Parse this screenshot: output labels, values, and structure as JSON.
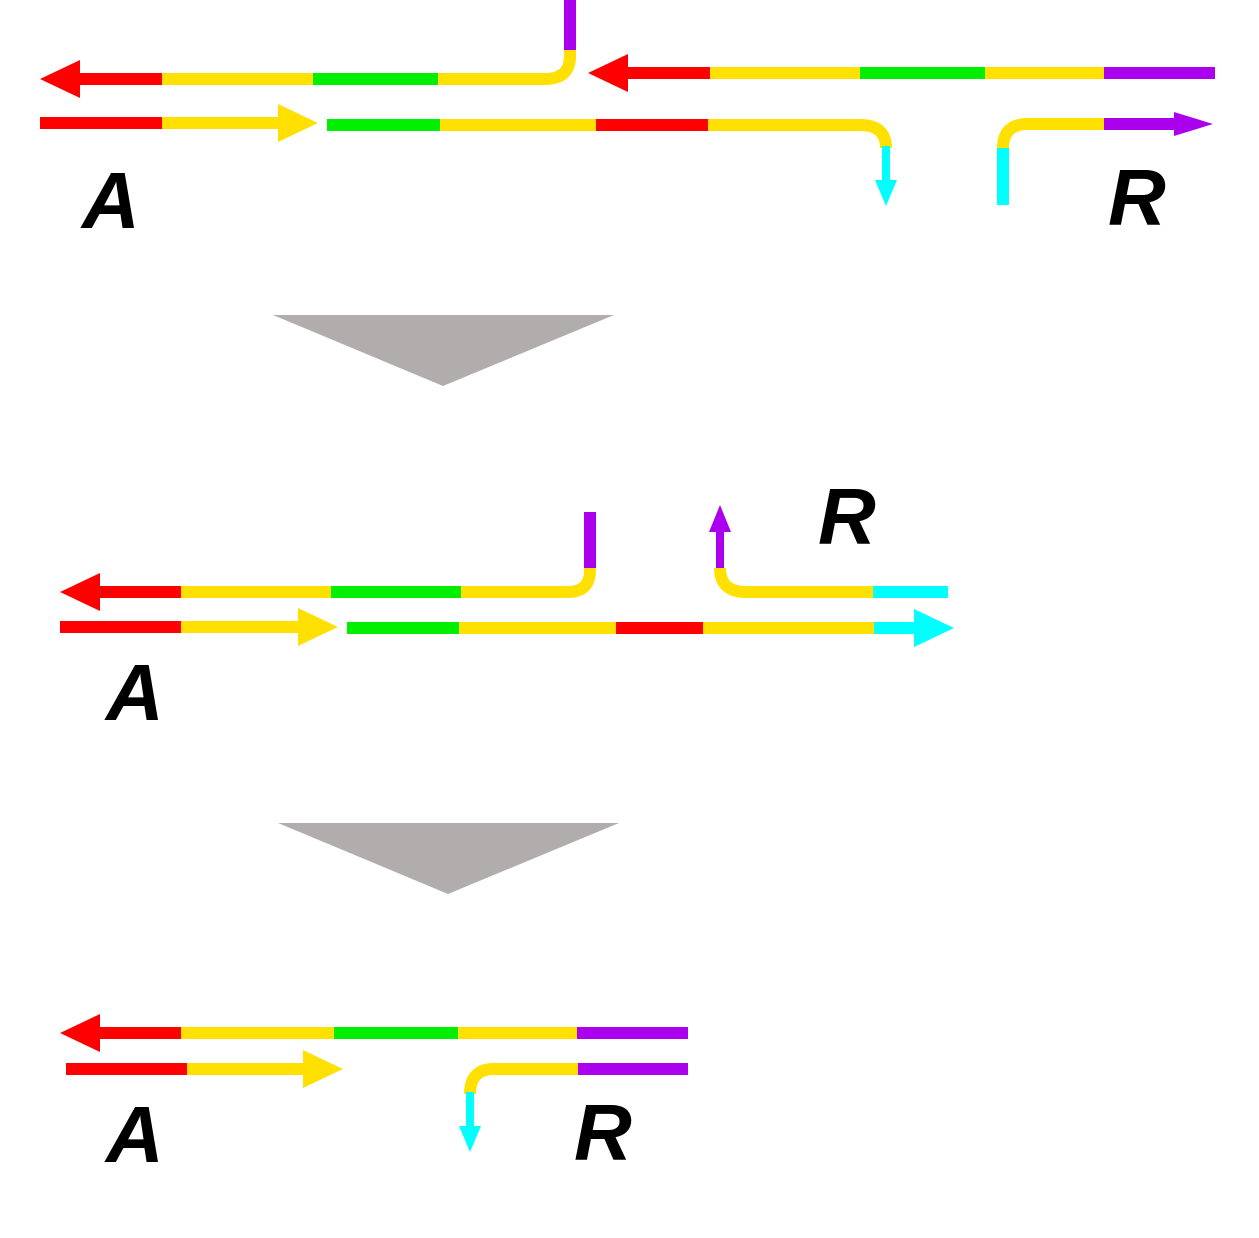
{
  "labels": {
    "a": "A",
    "r": "R"
  },
  "colors": {
    "red": "#ff0000",
    "yellow": "#ffe000",
    "green": "#00ee00",
    "purple": "#aa00ee",
    "cyan": "#00ffff",
    "grey_arrow": "#b0adac"
  }
}
